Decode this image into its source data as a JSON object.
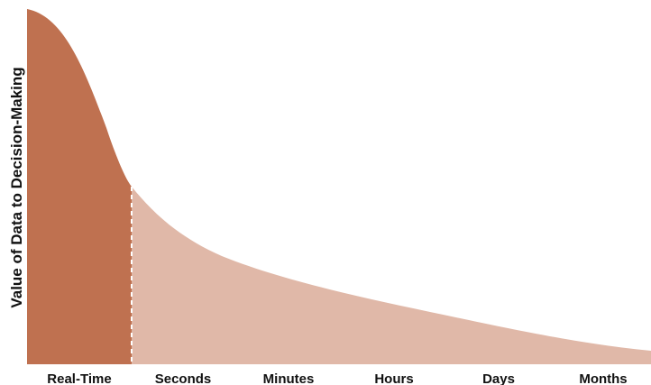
{
  "chart_data": {
    "type": "area",
    "title": "",
    "xlabel": "",
    "ylabel": "Value of Data to Decision-Making",
    "categories": [
      "Real-Time",
      "Seconds",
      "Minutes",
      "Hours",
      "Days",
      "Months"
    ],
    "grid": false,
    "legend": "none",
    "colors": {
      "highlight": "#bf7150",
      "rest": "#e0b8a8",
      "divider": "#ffffff",
      "text": "#111111"
    },
    "highlight_until": "Real-Time"
  }
}
